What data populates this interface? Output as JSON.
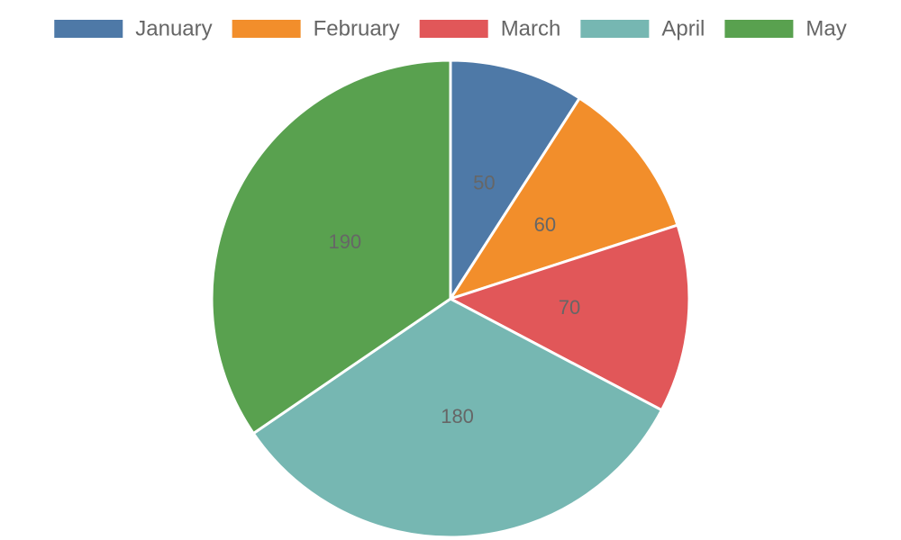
{
  "chart_data": {
    "type": "pie",
    "categories": [
      "January",
      "February",
      "March",
      "April",
      "May"
    ],
    "values": [
      50,
      60,
      70,
      180,
      190
    ],
    "colors": [
      "#4e79a7",
      "#f28e2b",
      "#e15759",
      "#76b7b2",
      "#59a14f"
    ],
    "legend": "top"
  }
}
